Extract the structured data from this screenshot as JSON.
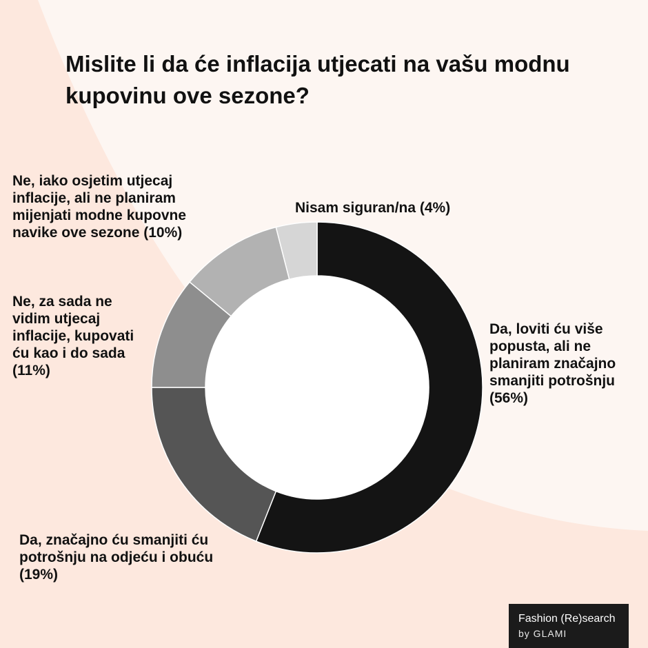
{
  "colors": {
    "background_left": "#fde8de",
    "background_right": "#fdf6f2",
    "slice_colors": [
      "#141414",
      "#555555",
      "#8e8e8e",
      "#b2b2b2",
      "#d6d6d6"
    ],
    "slice_stroke": "#ffffff",
    "brand_box": "#1b1b1b"
  },
  "chart_data": {
    "type": "pie",
    "style": "donut",
    "title": "Mislite li da će inflacija utjecati na vašu modnu kupovinu ove sezone?",
    "start_angle": "top",
    "direction": "clockwise",
    "slices": [
      {
        "label": "Da, loviti ću više popusta, ali ne planiram značajno smanjiti potrošnju (56%)",
        "value": 56
      },
      {
        "label": "Da, značajno ću smanjiti ću potrošnju na odjeću i obuću (19%)",
        "value": 19
      },
      {
        "label": "Ne, za sada ne vidim utjecaj inflacije,  kupovati ću kao i do sada (11%)",
        "value": 11
      },
      {
        "label": "Ne, iako osjetim utjecaj inflacije, ali ne planiram mijenjati modne kupovne navike ove sezone (10%)",
        "value": 10
      },
      {
        "label": "Nisam siguran/na (4%)",
        "value": 4
      }
    ]
  },
  "labels_display": [
    "Da, loviti ću više\npopusta, ali ne\nplaniram značajno\nsmanjiti potrošnju\n(56%)",
    "Da, značajno ću smanjiti ću\npotrošnju na odjeću i obuću\n(19%)",
    "Ne, za sada ne\nvidim utjecaj\ninflacije,  kupovati\nću kao i do sada\n(11%)",
    "Ne, iako osjetim utjecaj\ninflacije, ali ne planiram\nmijenjati modne kupovne\nnavike ove sezone (10%)",
    "Nisam siguran/na (4%)"
  ],
  "brand": {
    "name": "Fashion (Re)search",
    "by": "by GLAMI"
  }
}
